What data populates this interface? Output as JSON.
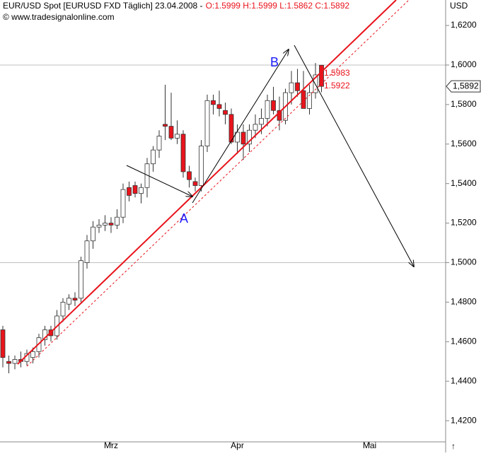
{
  "chart_data": {
    "type": "candlestick",
    "title": "EUR/USD Spot [EURUSD FXD  Täglich] 23.04.2008 -",
    "ohlc_label": "O:1.5999 H:1.5999 L:1.5862 C:1.5892",
    "subtitle": "© www.tradesignalonline.com",
    "y_axis_label": "USD",
    "corner_symbol": "↑",
    "categories": [
      null,
      null,
      null,
      null,
      null,
      null,
      null,
      null,
      null,
      null,
      null,
      null,
      null,
      null,
      null,
      null,
      null,
      null,
      "Mrz",
      null,
      null,
      null,
      null,
      null,
      null,
      null,
      null,
      null,
      null,
      null,
      null,
      null,
      null,
      null,
      null,
      null,
      null,
      null,
      null,
      "Apr",
      null,
      null,
      null,
      null,
      null,
      null,
      null,
      null,
      null,
      null,
      null,
      null,
      null,
      null,
      null,
      null,
      null,
      null,
      null,
      null,
      null,
      "Mai",
      null,
      null,
      null,
      null,
      null,
      null,
      null,
      null,
      null,
      null,
      null,
      null
    ],
    "open": [
      1.466,
      1.45,
      1.449,
      1.451,
      1.45,
      1.452,
      1.455,
      1.461,
      1.466,
      1.463,
      1.473,
      1.479,
      1.482,
      1.482,
      1.5,
      1.511,
      1.518,
      1.519,
      1.52,
      1.519,
      1.523,
      1.538,
      1.539,
      1.535,
      1.538,
      1.55,
      1.557,
      1.57,
      1.569,
      1.563,
      1.565,
      1.546,
      1.541,
      1.539,
      1.559,
      1.582,
      1.58,
      1.577,
      1.575,
      1.561,
      1.566,
      1.56,
      1.567,
      1.57,
      1.573,
      1.582,
      1.577,
      1.572,
      1.586,
      1.591,
      1.587,
      1.578,
      1.586,
      1.5999,
      null,
      null,
      null,
      null,
      null,
      null,
      null,
      null,
      null,
      null,
      null,
      null,
      null,
      null,
      null,
      null,
      null,
      null,
      null,
      null
    ],
    "high": [
      1.468,
      1.453,
      1.453,
      1.455,
      1.456,
      1.457,
      1.464,
      1.468,
      1.468,
      1.476,
      1.482,
      1.484,
      1.485,
      1.503,
      1.514,
      1.521,
      1.522,
      1.524,
      1.523,
      1.527,
      1.54,
      1.541,
      1.541,
      1.54,
      1.553,
      1.559,
      1.567,
      1.59,
      1.586,
      1.572,
      1.567,
      1.549,
      1.543,
      1.562,
      1.585,
      1.585,
      1.587,
      1.581,
      1.578,
      1.57,
      1.57,
      1.57,
      1.575,
      1.578,
      1.585,
      1.589,
      1.584,
      1.588,
      1.597,
      1.598,
      1.597,
      1.59,
      1.601,
      1.5999,
      null,
      null,
      null,
      null,
      null,
      null,
      null,
      null,
      null,
      null,
      null,
      null,
      null,
      null,
      null,
      null,
      null,
      null,
      null,
      null
    ],
    "low": [
      1.447,
      1.444,
      1.446,
      1.447,
      1.448,
      1.449,
      1.452,
      1.458,
      1.46,
      1.461,
      1.47,
      1.476,
      1.478,
      1.48,
      1.497,
      1.507,
      1.515,
      1.516,
      1.515,
      1.517,
      1.52,
      1.531,
      1.533,
      1.53,
      1.533,
      1.546,
      1.553,
      1.562,
      1.562,
      1.56,
      1.543,
      1.538,
      1.536,
      1.536,
      1.556,
      1.575,
      1.574,
      1.57,
      1.56,
      1.555,
      1.552,
      1.556,
      1.563,
      1.565,
      1.569,
      1.575,
      1.567,
      1.57,
      1.58,
      1.584,
      1.579,
      1.575,
      1.583,
      1.5862,
      null,
      null,
      null,
      null,
      null,
      null,
      null,
      null,
      null,
      null,
      null,
      null,
      null,
      null,
      null,
      null,
      null,
      null,
      null,
      null
    ],
    "close": [
      1.452,
      1.449,
      1.451,
      1.45,
      1.454,
      1.455,
      1.462,
      1.466,
      1.463,
      1.473,
      1.48,
      1.482,
      1.481,
      1.501,
      1.511,
      1.518,
      1.519,
      1.52,
      1.519,
      1.523,
      1.537,
      1.534,
      1.535,
      1.538,
      1.55,
      1.557,
      1.564,
      1.569,
      1.563,
      1.565,
      1.546,
      1.542,
      1.539,
      1.559,
      1.582,
      1.58,
      1.578,
      1.575,
      1.561,
      1.566,
      1.56,
      1.567,
      1.57,
      1.573,
      1.582,
      1.577,
      1.572,
      1.586,
      1.591,
      1.587,
      1.578,
      1.586,
      1.595,
      1.5892,
      null,
      null,
      null,
      null,
      null,
      null,
      null,
      null,
      null,
      null,
      null,
      null,
      null,
      null,
      null,
      null,
      null,
      null,
      null,
      null
    ],
    "up_color": "#ffffff",
    "down_color": "#e8141c",
    "ylim": [
      1.4093,
      1.6329
    ],
    "yticks": [
      {
        "value": 1.42,
        "label": "1,4200"
      },
      {
        "value": 1.44,
        "label": "1,4400"
      },
      {
        "value": 1.46,
        "label": "1,4600"
      },
      {
        "value": 1.48,
        "label": "1,4800"
      },
      {
        "value": 1.5,
        "label": "1,5000"
      },
      {
        "value": 1.52,
        "label": "1,5200"
      },
      {
        "value": 1.54,
        "label": "1,5400"
      },
      {
        "value": 1.56,
        "label": "1,5600"
      },
      {
        "value": 1.58,
        "label": "1,5800"
      },
      {
        "value": 1.6,
        "label": "1,6000"
      },
      {
        "value": 1.62,
        "label": "1,6200"
      }
    ],
    "hlines": [
      1.6,
      1.5
    ],
    "last_price": {
      "value": 1.5892,
      "label": "1,5892"
    },
    "annotations": [
      {
        "text": "1.5983"
      },
      {
        "text": "1.5922"
      },
      {
        "text": "A"
      },
      {
        "text": "B"
      }
    ]
  }
}
